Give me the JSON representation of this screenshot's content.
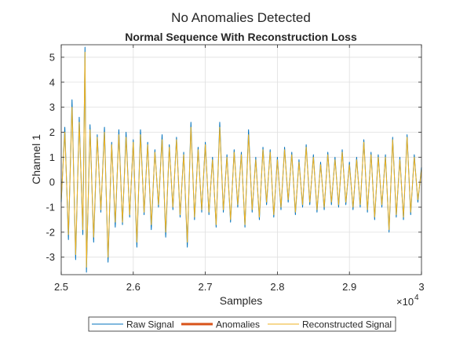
{
  "figure": {
    "suptitle": "No Anomalies Detected"
  },
  "chart_data": {
    "type": "line",
    "title": "Normal Sequence With Reconstruction Loss",
    "xlabel": "Samples",
    "ylabel": "Channel 1",
    "x_exponent_label": "×10",
    "x_exponent_power": "4",
    "xlim": [
      25000,
      30000
    ],
    "ylim": [
      -3.7,
      5.5
    ],
    "x_ticks": [
      25000,
      26000,
      27000,
      28000,
      29000,
      30000
    ],
    "x_tick_labels": [
      "2.5",
      "2.6",
      "2.7",
      "2.8",
      "2.9",
      "3"
    ],
    "y_ticks": [
      -3,
      -2,
      -1,
      0,
      1,
      2,
      3,
      4,
      5
    ],
    "y_tick_labels": [
      "-3",
      "-2",
      "-1",
      "0",
      "1",
      "2",
      "3",
      "4",
      "5"
    ],
    "grid": true,
    "legend_position": "bottom-outside",
    "series": [
      {
        "name": "Raw Signal",
        "color": "#0072BD",
        "points": [
          [
            25000,
            -0.8
          ],
          [
            25050,
            2.2
          ],
          [
            25100,
            -2.3
          ],
          [
            25150,
            3.3
          ],
          [
            25200,
            -3.1
          ],
          [
            25250,
            2.6
          ],
          [
            25300,
            -2.1
          ],
          [
            25330,
            5.4
          ],
          [
            25350,
            -3.6
          ],
          [
            25400,
            2.3
          ],
          [
            25450,
            -2.4
          ],
          [
            25500,
            1.9
          ],
          [
            25550,
            -1.2
          ],
          [
            25600,
            2.2
          ],
          [
            25650,
            -3.2
          ],
          [
            25700,
            1.6
          ],
          [
            25750,
            -1.8
          ],
          [
            25800,
            2.1
          ],
          [
            25850,
            -1.7
          ],
          [
            25900,
            2.0
          ],
          [
            25950,
            -1.4
          ],
          [
            26000,
            1.7
          ],
          [
            26050,
            -2.6
          ],
          [
            26100,
            2.1
          ],
          [
            26150,
            -1.3
          ],
          [
            26200,
            1.6
          ],
          [
            26250,
            -1.9
          ],
          [
            26300,
            1.3
          ],
          [
            26350,
            -1.0
          ],
          [
            26400,
            1.9
          ],
          [
            26450,
            -2.2
          ],
          [
            26500,
            1.5
          ],
          [
            26550,
            -1.1
          ],
          [
            26600,
            1.8
          ],
          [
            26650,
            -1.4
          ],
          [
            26700,
            1.2
          ],
          [
            26750,
            -2.6
          ],
          [
            26800,
            2.4
          ],
          [
            26850,
            -1.5
          ],
          [
            26900,
            1.4
          ],
          [
            26950,
            -1.2
          ],
          [
            27000,
            1.6
          ],
          [
            27050,
            -1.3
          ],
          [
            27100,
            1.0
          ],
          [
            27150,
            -1.8
          ],
          [
            27200,
            2.4
          ],
          [
            27250,
            -1.2
          ],
          [
            27300,
            1.1
          ],
          [
            27350,
            -1.6
          ],
          [
            27400,
            1.3
          ],
          [
            27450,
            -1.0
          ],
          [
            27500,
            1.2
          ],
          [
            27550,
            -1.8
          ],
          [
            27600,
            2.1
          ],
          [
            27650,
            -1.2
          ],
          [
            27700,
            1.0
          ],
          [
            27750,
            -1.5
          ],
          [
            27800,
            1.4
          ],
          [
            27850,
            -0.9
          ],
          [
            27900,
            1.3
          ],
          [
            27950,
            -1.4
          ],
          [
            28000,
            1.0
          ],
          [
            28050,
            -1.1
          ],
          [
            28100,
            1.4
          ],
          [
            28150,
            -0.8
          ],
          [
            28200,
            1.2
          ],
          [
            28250,
            -1.3
          ],
          [
            28300,
            0.9
          ],
          [
            28350,
            -1.0
          ],
          [
            28400,
            1.5
          ],
          [
            28450,
            -0.9
          ],
          [
            28500,
            1.1
          ],
          [
            28550,
            -1.2
          ],
          [
            28600,
            0.8
          ],
          [
            28650,
            -1.1
          ],
          [
            28700,
            1.2
          ],
          [
            28750,
            -0.9
          ],
          [
            28800,
            1.0
          ],
          [
            28850,
            -1.0
          ],
          [
            28900,
            1.3
          ],
          [
            28950,
            -0.9
          ],
          [
            29000,
            0.8
          ],
          [
            29050,
            -1.1
          ],
          [
            29100,
            1.0
          ],
          [
            29150,
            -1.0
          ],
          [
            29200,
            1.7
          ],
          [
            29250,
            -1.2
          ],
          [
            29300,
            1.2
          ],
          [
            29350,
            -1.5
          ],
          [
            29400,
            1.1
          ],
          [
            29450,
            -1.0
          ],
          [
            29500,
            1.1
          ],
          [
            29550,
            -2.0
          ],
          [
            29600,
            1.8
          ],
          [
            29650,
            -1.4
          ],
          [
            29700,
            1.0
          ],
          [
            29750,
            -1.5
          ],
          [
            29800,
            1.9
          ],
          [
            29850,
            -1.3
          ],
          [
            29900,
            1.1
          ],
          [
            29950,
            -0.8
          ],
          [
            30000,
            0.6
          ]
        ]
      },
      {
        "name": "Anomalies",
        "color": "#D95319",
        "points": []
      },
      {
        "name": "Reconstructed Signal",
        "color": "#EDB120",
        "points": [
          [
            25000,
            -0.7
          ],
          [
            25050,
            2.0
          ],
          [
            25100,
            -2.1
          ],
          [
            25150,
            3.0
          ],
          [
            25200,
            -2.9
          ],
          [
            25250,
            2.4
          ],
          [
            25300,
            -1.9
          ],
          [
            25330,
            5.2
          ],
          [
            25350,
            -3.4
          ],
          [
            25400,
            2.1
          ],
          [
            25450,
            -2.2
          ],
          [
            25500,
            1.8
          ],
          [
            25550,
            -1.1
          ],
          [
            25600,
            2.0
          ],
          [
            25650,
            -3.0
          ],
          [
            25700,
            1.5
          ],
          [
            25750,
            -1.6
          ],
          [
            25800,
            1.9
          ],
          [
            25850,
            -1.6
          ],
          [
            25900,
            1.8
          ],
          [
            25950,
            -1.3
          ],
          [
            26000,
            1.6
          ],
          [
            26050,
            -2.4
          ],
          [
            26100,
            1.9
          ],
          [
            26150,
            -1.2
          ],
          [
            26200,
            1.5
          ],
          [
            26250,
            -1.7
          ],
          [
            26300,
            1.2
          ],
          [
            26350,
            -0.9
          ],
          [
            26400,
            1.7
          ],
          [
            26450,
            -2.0
          ],
          [
            26500,
            1.4
          ],
          [
            26550,
            -1.0
          ],
          [
            26600,
            1.7
          ],
          [
            26650,
            -1.3
          ],
          [
            26700,
            1.1
          ],
          [
            26750,
            -2.4
          ],
          [
            26800,
            2.2
          ],
          [
            26850,
            -1.4
          ],
          [
            26900,
            1.3
          ],
          [
            26950,
            -1.1
          ],
          [
            27000,
            1.5
          ],
          [
            27050,
            -1.2
          ],
          [
            27100,
            0.9
          ],
          [
            27150,
            -1.7
          ],
          [
            27200,
            2.2
          ],
          [
            27250,
            -1.1
          ],
          [
            27300,
            1.0
          ],
          [
            27350,
            -1.5
          ],
          [
            27400,
            1.2
          ],
          [
            27450,
            -0.9
          ],
          [
            27500,
            1.1
          ],
          [
            27550,
            -1.7
          ],
          [
            27600,
            1.9
          ],
          [
            27650,
            -1.1
          ],
          [
            27700,
            0.9
          ],
          [
            27750,
            -1.4
          ],
          [
            27800,
            1.3
          ],
          [
            27850,
            -0.8
          ],
          [
            27900,
            1.2
          ],
          [
            27950,
            -1.3
          ],
          [
            28000,
            0.9
          ],
          [
            28050,
            -1.0
          ],
          [
            28100,
            1.3
          ],
          [
            28150,
            -0.7
          ],
          [
            28200,
            1.1
          ],
          [
            28250,
            -1.2
          ],
          [
            28300,
            0.8
          ],
          [
            28350,
            -0.9
          ],
          [
            28400,
            1.4
          ],
          [
            28450,
            -0.8
          ],
          [
            28500,
            1.0
          ],
          [
            28550,
            -1.1
          ],
          [
            28600,
            0.7
          ],
          [
            28650,
            -1.0
          ],
          [
            28700,
            1.1
          ],
          [
            28750,
            -0.8
          ],
          [
            28800,
            0.9
          ],
          [
            28850,
            -0.9
          ],
          [
            28900,
            1.2
          ],
          [
            28950,
            -0.8
          ],
          [
            29000,
            0.7
          ],
          [
            29050,
            -1.0
          ],
          [
            29100,
            0.9
          ],
          [
            29150,
            -0.9
          ],
          [
            29200,
            1.6
          ],
          [
            29250,
            -1.1
          ],
          [
            29300,
            1.1
          ],
          [
            29350,
            -1.4
          ],
          [
            29400,
            1.0
          ],
          [
            29450,
            -0.9
          ],
          [
            29500,
            1.0
          ],
          [
            29550,
            -1.9
          ],
          [
            29600,
            1.7
          ],
          [
            29650,
            -1.3
          ],
          [
            29700,
            0.9
          ],
          [
            29750,
            -1.4
          ],
          [
            29800,
            1.8
          ],
          [
            29850,
            -1.2
          ],
          [
            29900,
            1.0
          ],
          [
            29950,
            -0.7
          ],
          [
            30000,
            0.5
          ]
        ]
      }
    ]
  }
}
